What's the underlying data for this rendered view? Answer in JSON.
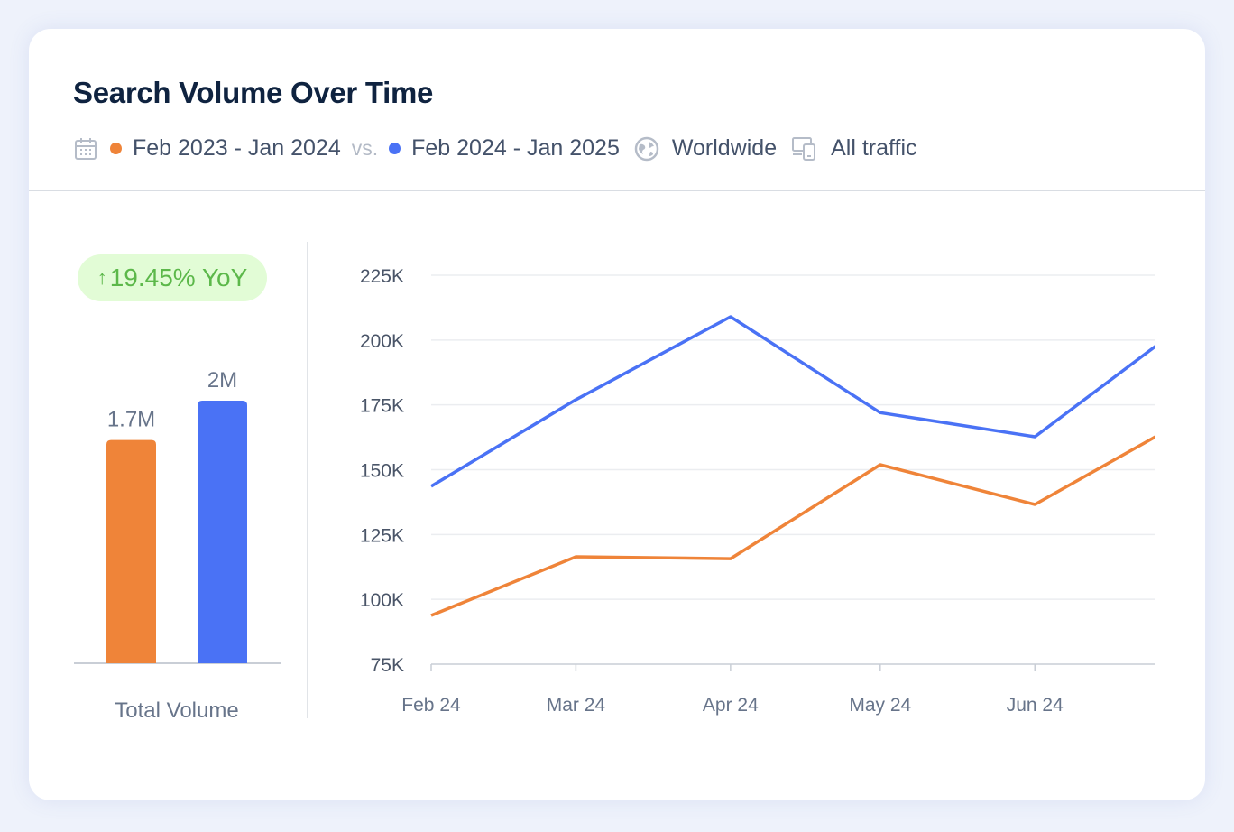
{
  "header": {
    "title": "Search Volume Over Time",
    "period_a": "Feb 2023 - Jan 2024",
    "vs": "vs.",
    "period_b": "Feb 2024 - Jan 2025",
    "location": "Worldwide",
    "traffic": "All traffic",
    "icons": [
      "calendar-icon",
      "globe-icon",
      "devices-icon"
    ]
  },
  "colors": {
    "previous": "#ef8439",
    "current": "#4a72f5",
    "badge_bg": "#e2fcd6",
    "badge_text": "#5cb84a"
  },
  "badge": {
    "arrow": "↑",
    "text": "19.45% YoY"
  },
  "chart_data": [
    {
      "type": "bar",
      "categories": [
        "Feb 2023 - Jan 2024",
        "Feb 2024 - Jan 2025"
      ],
      "values": [
        1.7,
        2.0
      ],
      "data_labels": [
        "1.7M",
        "2M"
      ],
      "xlabel": "Total Volume",
      "ylabel": "",
      "unit": "M",
      "colors": [
        "#ef8439",
        "#4a72f5"
      ]
    },
    {
      "type": "line",
      "x": [
        "2024-02-01",
        "2024-03-01",
        "2024-04-01",
        "2024-05-01",
        "2024-06-01",
        "2024-07-01"
      ],
      "xtick_labels": [
        "Feb 24",
        "Mar 24",
        "Apr 24",
        "May 24",
        "Jun 24"
      ],
      "xlim": [
        "2024-02-01",
        "2024-06-25"
      ],
      "ylim": [
        75000,
        225000
      ],
      "yticks": [
        75000,
        100000,
        125000,
        150000,
        175000,
        200000,
        225000
      ],
      "ytick_labels": [
        "75K",
        "100K",
        "125K",
        "150K",
        "175K",
        "200K",
        "225K"
      ],
      "grid": true,
      "series": [
        {
          "key": "current",
          "color": "#4a72f5",
          "values": [
            143600,
            177000,
            209000,
            172000,
            162700,
            206000
          ]
        },
        {
          "key": "previous",
          "color": "#ef8439",
          "values": [
            93800,
            116400,
            115700,
            151900,
            136600,
            169000
          ]
        }
      ]
    }
  ]
}
